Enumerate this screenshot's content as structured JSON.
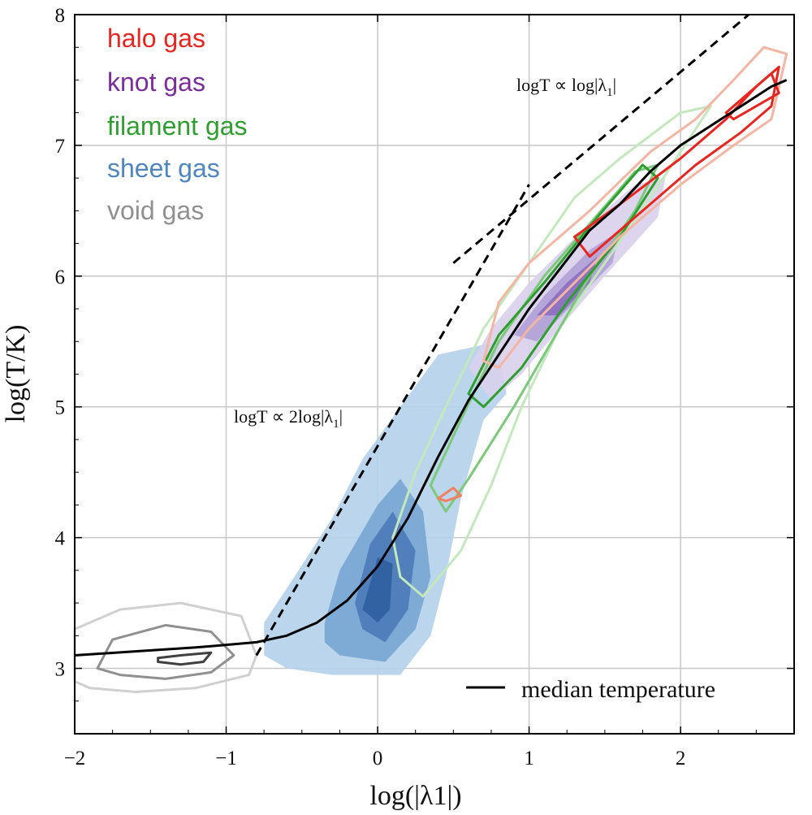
{
  "chart_data": {
    "type": "contour",
    "xlabel": "log(|λ1|)",
    "ylabel": "log(T/K)",
    "xlim": [
      -2,
      2.75
    ],
    "ylim": [
      2.5,
      8
    ],
    "xticks": [
      -2,
      -1,
      0,
      1,
      2
    ],
    "xtick_labels": [
      "−2",
      "−1",
      "0",
      "1",
      "2"
    ],
    "yticks": [
      3,
      4,
      5,
      6,
      7,
      8
    ],
    "ytick_labels": [
      "3",
      "4",
      "5",
      "6",
      "7",
      "8"
    ],
    "grid": true,
    "legend": {
      "placement": "top-left",
      "entries": [
        {
          "label": "halo gas",
          "color": "#e8251f"
        },
        {
          "label": "knot gas",
          "color": "#7b2d9e"
        },
        {
          "label": "filament gas",
          "color": "#2f9e2f"
        },
        {
          "label": "sheet gas",
          "color": "#4f86c0"
        },
        {
          "label": "void gas",
          "color": "#909090"
        }
      ]
    },
    "median_legend": {
      "label": "median temperature",
      "placement": "bottom-right",
      "color": "#000000"
    },
    "annotations": [
      {
        "text": "logT ∝ log|λ",
        "sub": "1",
        "tail": "|",
        "at": [
          0.92,
          7.45
        ]
      },
      {
        "text": "logT ∝ 2log|λ",
        "sub": "1",
        "tail": "|",
        "at": [
          -0.95,
          4.88
        ]
      }
    ],
    "reference_lines": [
      {
        "name": "slope-2",
        "x": [
          -0.8,
          1.0
        ],
        "y": [
          3.1,
          6.7
        ],
        "style": "dashed"
      },
      {
        "name": "slope-1",
        "x": [
          0.5,
          2.45
        ],
        "y": [
          6.1,
          8.0
        ],
        "style": "dashed"
      }
    ],
    "median_curve": {
      "x": [
        -2.0,
        -1.6,
        -1.2,
        -0.8,
        -0.6,
        -0.4,
        -0.2,
        0.0,
        0.2,
        0.4,
        0.6,
        0.8,
        1.0,
        1.2,
        1.4,
        1.6,
        1.8,
        2.0,
        2.2,
        2.4,
        2.6,
        2.7
      ],
      "y": [
        3.1,
        3.13,
        3.16,
        3.2,
        3.25,
        3.35,
        3.52,
        3.78,
        4.15,
        4.62,
        5.05,
        5.4,
        5.75,
        6.05,
        6.35,
        6.55,
        6.8,
        7.0,
        7.15,
        7.3,
        7.45,
        7.5
      ]
    },
    "series": [
      {
        "name": "sheet gas",
        "kind": "filled",
        "colors": [
          "#b4d2ea",
          "#78a6d4",
          "#4b7ab9",
          "#2f5f9e"
        ],
        "levels": [
          [
            [
              -0.75,
              3.35
            ],
            [
              -0.55,
              3.7
            ],
            [
              -0.3,
              4.15
            ],
            [
              -0.1,
              4.6
            ],
            [
              0.15,
              5.0
            ],
            [
              0.4,
              5.4
            ],
            [
              0.8,
              5.5
            ],
            [
              0.85,
              5.1
            ],
            [
              0.7,
              4.9
            ],
            [
              0.55,
              4.3
            ],
            [
              0.45,
              3.7
            ],
            [
              0.35,
              3.25
            ],
            [
              0.15,
              2.95
            ],
            [
              -0.3,
              2.95
            ],
            [
              -0.6,
              3.0
            ],
            [
              -0.75,
              3.1
            ]
          ],
          [
            [
              -0.35,
              3.35
            ],
            [
              -0.25,
              3.75
            ],
            [
              0.0,
              4.25
            ],
            [
              0.15,
              4.45
            ],
            [
              0.3,
              4.2
            ],
            [
              0.35,
              3.7
            ],
            [
              0.25,
              3.3
            ],
            [
              0.05,
              3.05
            ],
            [
              -0.25,
              3.1
            ],
            [
              -0.35,
              3.2
            ]
          ],
          [
            [
              -0.15,
              3.5
            ],
            [
              -0.05,
              3.95
            ],
            [
              0.1,
              4.2
            ],
            [
              0.25,
              3.9
            ],
            [
              0.2,
              3.45
            ],
            [
              0.05,
              3.2
            ],
            [
              -0.1,
              3.3
            ]
          ],
          [
            [
              -0.1,
              3.45
            ],
            [
              0.0,
              3.85
            ],
            [
              0.1,
              3.8
            ],
            [
              0.08,
              3.45
            ],
            [
              0.0,
              3.35
            ]
          ]
        ]
      },
      {
        "name": "knot gas",
        "kind": "filled",
        "colors": [
          "#d9d0ec",
          "#b0a0d6",
          "#8a6fc0"
        ],
        "levels": [
          [
            [
              0.6,
              5.3
            ],
            [
              0.75,
              5.6
            ],
            [
              1.0,
              5.95
            ],
            [
              1.35,
              6.35
            ],
            [
              1.7,
              6.7
            ],
            [
              1.9,
              6.75
            ],
            [
              1.85,
              6.45
            ],
            [
              1.5,
              6.0
            ],
            [
              1.2,
              5.6
            ],
            [
              0.95,
              5.25
            ],
            [
              0.75,
              5.05
            ]
          ],
          [
            [
              0.9,
              5.55
            ],
            [
              1.1,
              5.85
            ],
            [
              1.4,
              6.2
            ],
            [
              1.6,
              6.35
            ],
            [
              1.55,
              6.1
            ],
            [
              1.3,
              5.8
            ],
            [
              1.05,
              5.5
            ]
          ],
          [
            [
              1.05,
              5.7
            ],
            [
              1.25,
              5.95
            ],
            [
              1.45,
              6.15
            ],
            [
              1.4,
              5.95
            ],
            [
              1.2,
              5.7
            ]
          ]
        ]
      },
      {
        "name": "filament gas",
        "kind": "lines",
        "colors": [
          "#c4e8bd",
          "#7bc97b",
          "#2f9e2f"
        ],
        "levels": [
          [
            [
              0.15,
              3.7
            ],
            [
              0.1,
              4.0
            ],
            [
              0.25,
              4.5
            ],
            [
              0.45,
              5.0
            ],
            [
              0.7,
              5.6
            ],
            [
              1.0,
              6.1
            ],
            [
              1.3,
              6.6
            ],
            [
              1.6,
              6.9
            ],
            [
              2.0,
              7.25
            ],
            [
              2.2,
              7.3
            ],
            [
              2.0,
              6.95
            ],
            [
              1.8,
              6.6
            ],
            [
              1.5,
              6.1
            ],
            [
              1.2,
              5.6
            ],
            [
              0.95,
              5.0
            ],
            [
              0.75,
              4.4
            ],
            [
              0.55,
              3.9
            ],
            [
              0.3,
              3.55
            ]
          ],
          [
            [
              0.35,
              4.4
            ],
            [
              0.55,
              4.9
            ],
            [
              0.8,
              5.5
            ],
            [
              1.1,
              6.0
            ],
            [
              1.4,
              6.4
            ],
            [
              1.7,
              6.8
            ],
            [
              1.85,
              6.85
            ],
            [
              1.7,
              6.5
            ],
            [
              1.4,
              6.0
            ],
            [
              1.15,
              5.5
            ],
            [
              0.9,
              5.0
            ],
            [
              0.6,
              4.45
            ],
            [
              0.45,
              4.2
            ]
          ],
          [
            [
              0.6,
              5.1
            ],
            [
              0.8,
              5.55
            ],
            [
              1.1,
              5.95
            ],
            [
              1.45,
              6.45
            ],
            [
              1.75,
              6.85
            ],
            [
              1.85,
              6.75
            ],
            [
              1.6,
              6.3
            ],
            [
              1.25,
              5.8
            ],
            [
              0.95,
              5.3
            ],
            [
              0.7,
              5.0
            ]
          ]
        ]
      },
      {
        "name": "halo gas",
        "kind": "lines",
        "colors": [
          "#f4b5a3",
          "#f08060",
          "#e8251f"
        ],
        "levels": [
          [
            [
              0.7,
              5.35
            ],
            [
              0.8,
              5.8
            ],
            [
              1.0,
              6.1
            ],
            [
              1.4,
              6.5
            ],
            [
              1.8,
              6.95
            ],
            [
              2.1,
              7.2
            ],
            [
              2.35,
              7.5
            ],
            [
              2.55,
              7.75
            ],
            [
              2.7,
              7.7
            ],
            [
              2.6,
              7.2
            ],
            [
              2.35,
              7.0
            ],
            [
              2.0,
              6.7
            ],
            [
              1.6,
              6.3
            ],
            [
              1.3,
              5.95
            ],
            [
              1.0,
              5.6
            ],
            [
              0.8,
              5.3
            ]
          ],
          [
            [
              0.4,
              4.3
            ],
            [
              0.5,
              4.38
            ],
            [
              0.55,
              4.32
            ],
            [
              0.45,
              4.28
            ]
          ],
          [
            [
              1.3,
              6.3
            ],
            [
              1.6,
              6.55
            ],
            [
              2.0,
              6.9
            ],
            [
              2.3,
              7.2
            ],
            [
              2.5,
              7.45
            ],
            [
              2.65,
              7.6
            ],
            [
              2.6,
              7.3
            ],
            [
              2.4,
              7.1
            ],
            [
              2.1,
              6.85
            ],
            [
              1.7,
              6.45
            ],
            [
              1.4,
              6.15
            ]
          ],
          [
            [
              2.3,
              7.25
            ],
            [
              2.45,
              7.4
            ],
            [
              2.6,
              7.55
            ],
            [
              2.65,
              7.4
            ],
            [
              2.5,
              7.3
            ],
            [
              2.35,
              7.2
            ]
          ]
        ]
      },
      {
        "name": "void gas",
        "kind": "lines",
        "colors": [
          "#d0d0d0",
          "#909090",
          "#404040"
        ],
        "levels": [
          [
            [
              -2.0,
              2.9
            ],
            [
              -2.0,
              3.3
            ],
            [
              -1.7,
              3.45
            ],
            [
              -1.3,
              3.5
            ],
            [
              -0.9,
              3.4
            ],
            [
              -0.8,
              3.1
            ],
            [
              -0.85,
              2.95
            ],
            [
              -1.2,
              2.85
            ],
            [
              -1.6,
              2.82
            ],
            [
              -1.9,
              2.85
            ]
          ],
          [
            [
              -1.85,
              3.0
            ],
            [
              -1.75,
              3.22
            ],
            [
              -1.4,
              3.33
            ],
            [
              -1.1,
              3.28
            ],
            [
              -0.95,
              3.1
            ],
            [
              -1.1,
              2.97
            ],
            [
              -1.4,
              2.92
            ],
            [
              -1.7,
              2.95
            ]
          ],
          [
            [
              -1.45,
              3.08
            ],
            [
              -1.3,
              3.1
            ],
            [
              -1.1,
              3.12
            ],
            [
              -1.15,
              3.05
            ],
            [
              -1.3,
              3.03
            ],
            [
              -1.45,
              3.05
            ]
          ]
        ]
      }
    ]
  }
}
